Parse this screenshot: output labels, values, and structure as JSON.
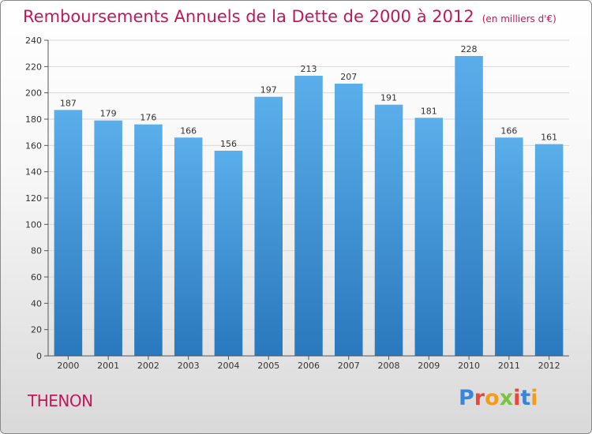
{
  "header": {
    "title": "Remboursements Annuels de la Dette de 2000 à 2012",
    "unit": "(en milliers d'€)"
  },
  "footer": {
    "commune": "THENON",
    "logo_text": "Proxiti"
  },
  "colors": {
    "bar_top": "#5aaeea",
    "bar_bottom": "#2a78bd",
    "title": "#c2185b",
    "grid": "#d8d8d8"
  },
  "chart_data": {
    "type": "bar",
    "title": "Remboursements Annuels de la Dette de 2000 à 2012",
    "xlabel": "",
    "ylabel": "(en milliers d'€)",
    "categories": [
      "2000",
      "2001",
      "2002",
      "2003",
      "2004",
      "2005",
      "2006",
      "2007",
      "2008",
      "2009",
      "2010",
      "2011",
      "2012"
    ],
    "values": [
      187,
      179,
      176,
      166,
      156,
      197,
      213,
      207,
      191,
      181,
      228,
      166,
      161
    ],
    "ylim": [
      0,
      240
    ],
    "yticks": [
      0,
      20,
      40,
      60,
      80,
      100,
      120,
      140,
      160,
      180,
      200,
      220,
      240
    ],
    "grid": true,
    "legend": "none"
  }
}
